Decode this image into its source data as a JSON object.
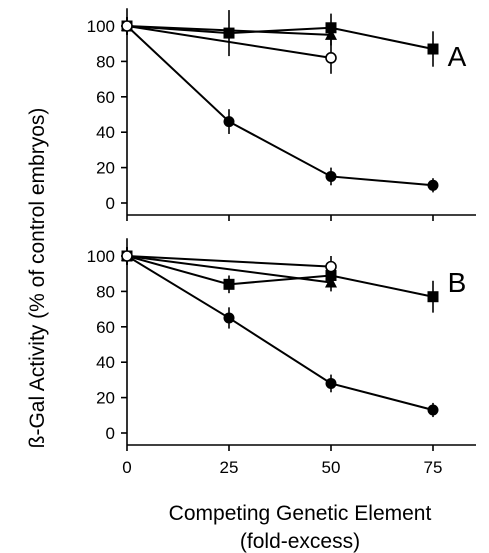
{
  "figure": {
    "ylabel": "ß-Gal Activity (% of control embryos)",
    "xlabel_line1": "Competing Genetic Element",
    "xlabel_line2": "(fold-excess)"
  },
  "chart_data": [
    {
      "type": "line",
      "panel_label": "A",
      "xlabel": "Competing Genetic Element (fold-excess)",
      "ylabel": "ß-Gal Activity (% of control embryos)",
      "x_ticks": [
        0,
        25,
        50,
        75
      ],
      "y_ticks": [
        0,
        20,
        40,
        60,
        80,
        100
      ],
      "xlim": [
        0,
        90
      ],
      "ylim": [
        0,
        110
      ],
      "grid": false,
      "series": [
        {
          "marker": "filled-circle",
          "x": [
            0,
            25,
            50,
            75
          ],
          "y": [
            100,
            46,
            15,
            10
          ],
          "err": [
            5,
            7,
            5,
            4
          ]
        },
        {
          "marker": "filled-square",
          "x": [
            0,
            25,
            50,
            75
          ],
          "y": [
            100,
            96,
            99,
            87
          ],
          "err": [
            5,
            13,
            8,
            10
          ]
        },
        {
          "marker": "filled-triangle",
          "x": [
            0,
            50
          ],
          "y": [
            100,
            95
          ],
          "err": [
            5,
            6
          ]
        },
        {
          "marker": "open-circle",
          "x": [
            0,
            50
          ],
          "y": [
            100,
            82
          ],
          "err": [
            5,
            9
          ]
        }
      ]
    },
    {
      "type": "line",
      "panel_label": "B",
      "xlabel": "Competing Genetic Element (fold-excess)",
      "ylabel": "ß-Gal Activity (% of control embryos)",
      "x_ticks": [
        0,
        25,
        50,
        75
      ],
      "y_ticks": [
        0,
        20,
        40,
        60,
        80,
        100
      ],
      "xlim": [
        0,
        90
      ],
      "ylim": [
        0,
        110
      ],
      "grid": false,
      "series": [
        {
          "marker": "filled-circle",
          "x": [
            0,
            25,
            50,
            75
          ],
          "y": [
            100,
            65,
            28,
            13
          ],
          "err": [
            5,
            6,
            5,
            4
          ]
        },
        {
          "marker": "filled-square",
          "x": [
            0,
            25,
            50,
            75
          ],
          "y": [
            100,
            84,
            89,
            77
          ],
          "err": [
            5,
            5,
            6,
            9
          ]
        },
        {
          "marker": "filled-triangle",
          "x": [
            0,
            50
          ],
          "y": [
            100,
            85
          ],
          "err": [
            5,
            5
          ]
        },
        {
          "marker": "open-circle",
          "x": [
            0,
            50
          ],
          "y": [
            100,
            94
          ],
          "err": [
            5,
            6
          ]
        }
      ]
    }
  ]
}
